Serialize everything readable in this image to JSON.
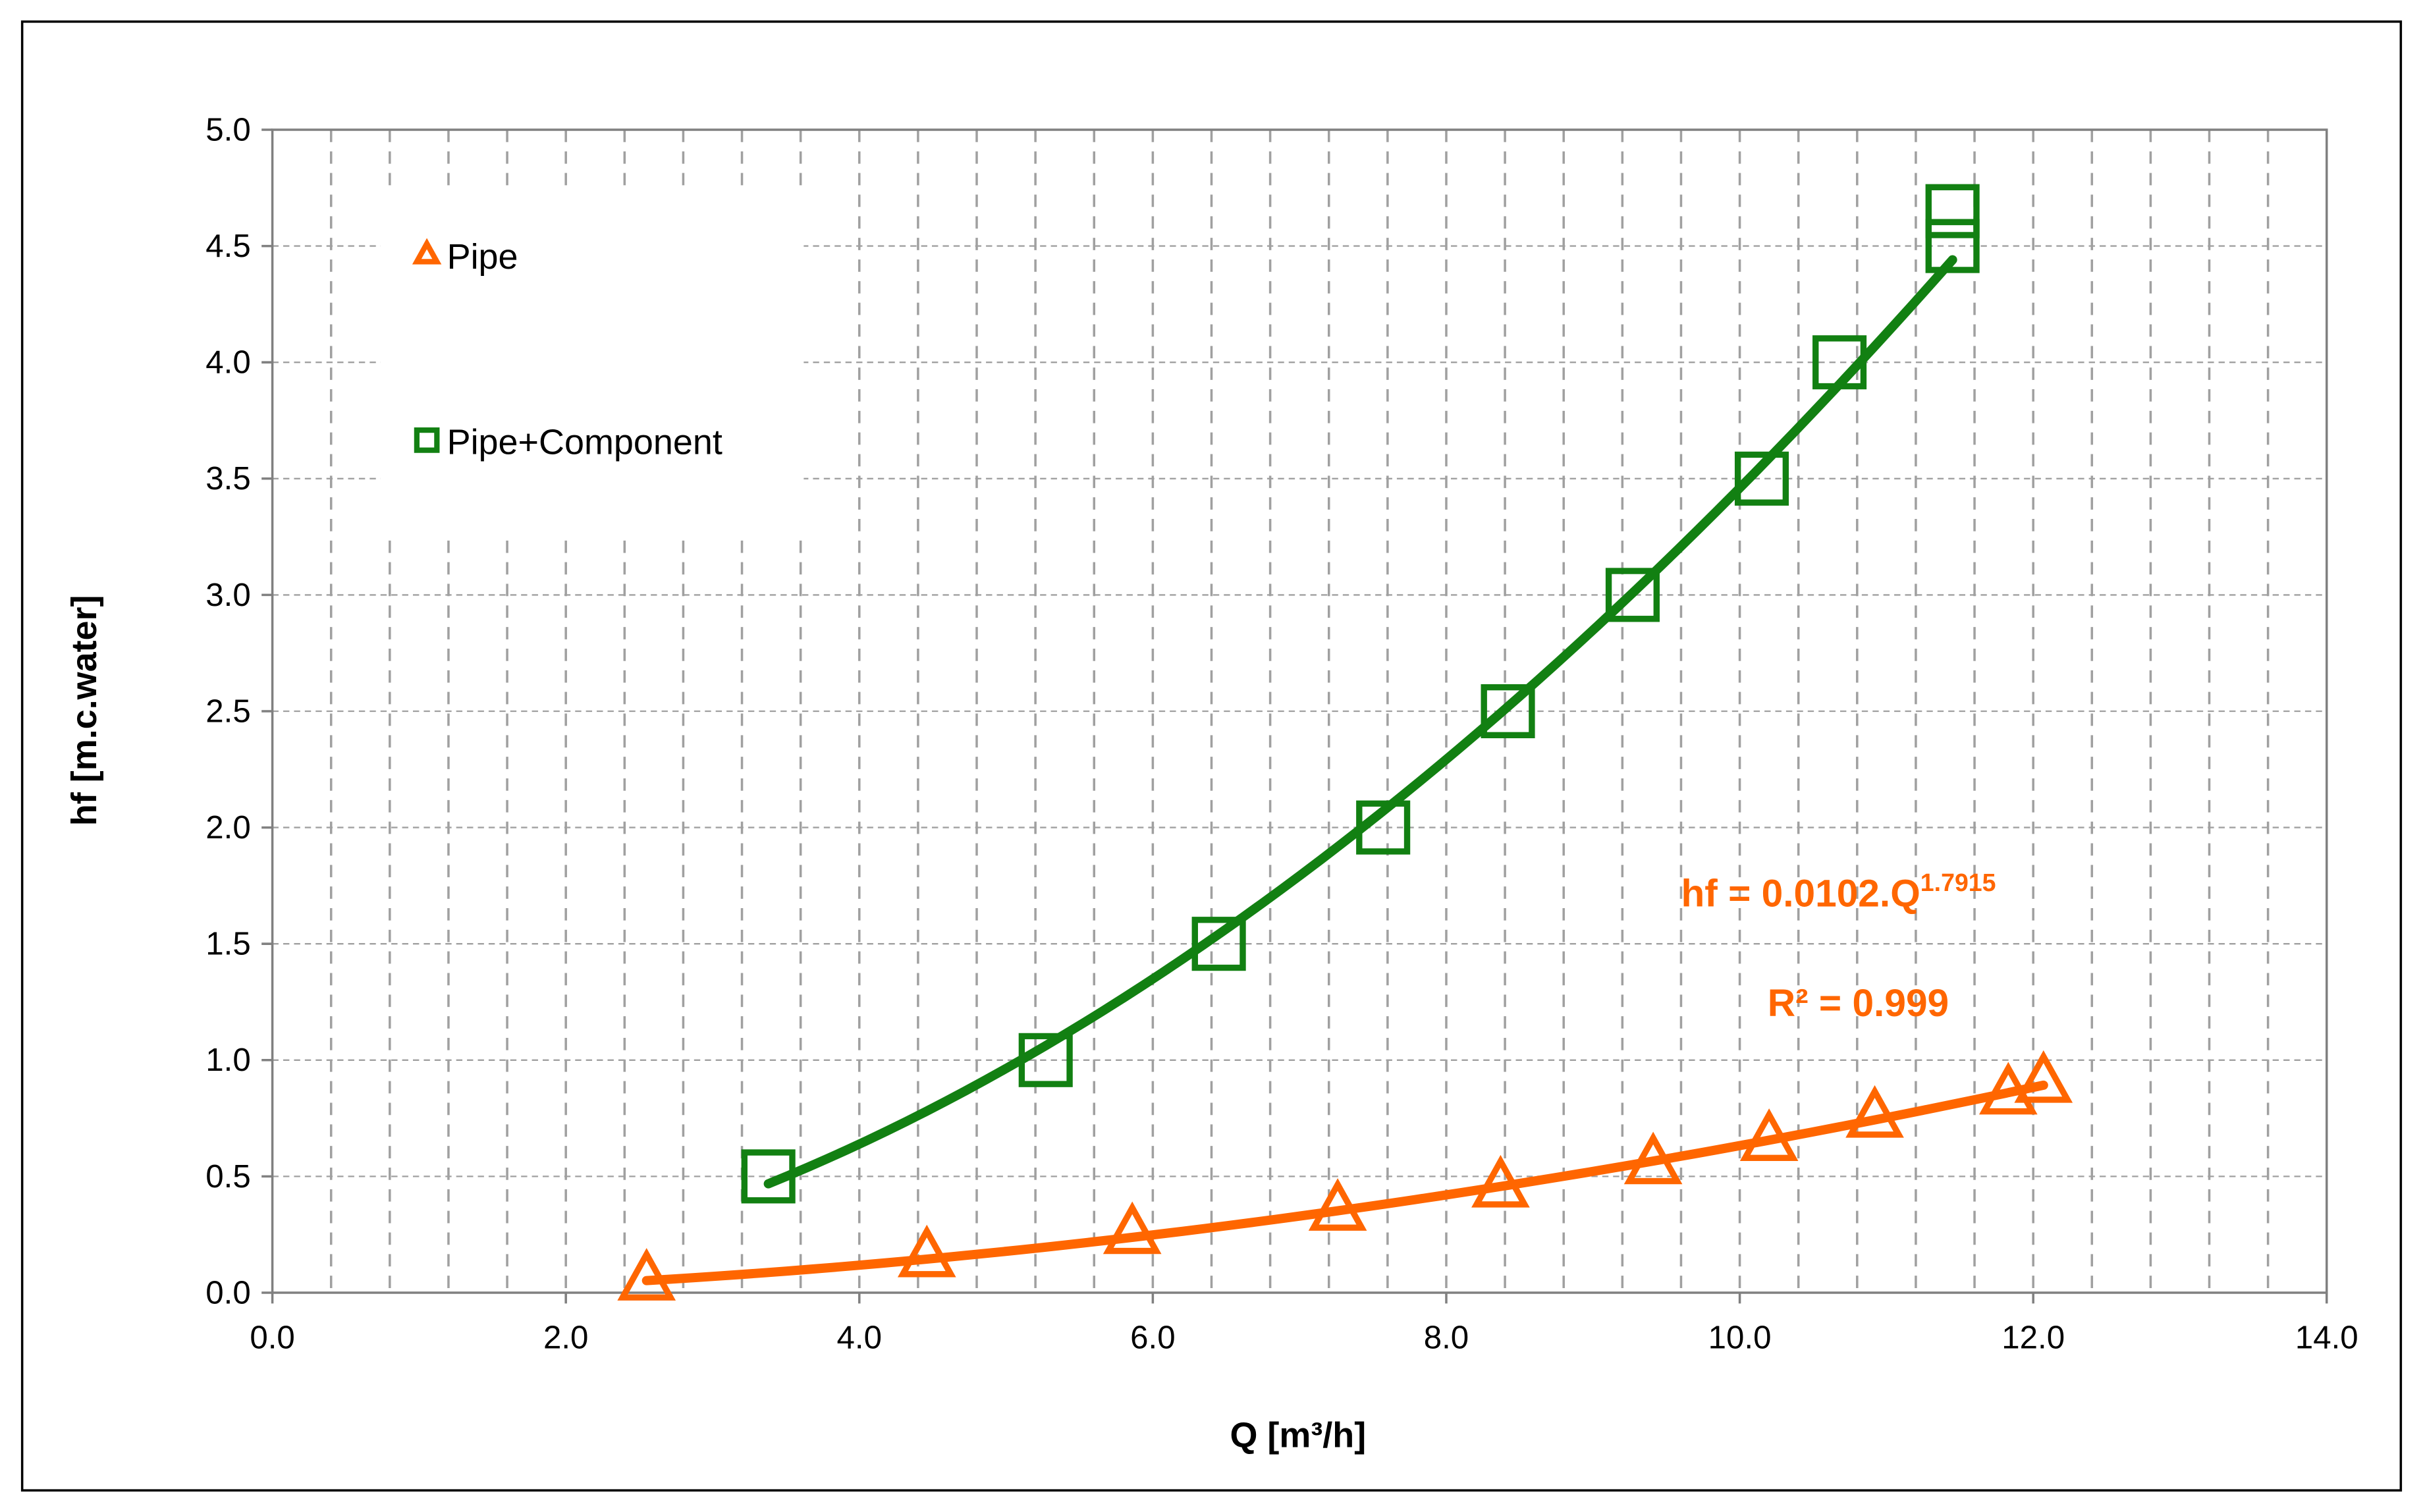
{
  "chart_data": {
    "type": "scatter",
    "xlabel": "Q [m³/h]",
    "ylabel": "hf [m.c.water]",
    "xlim": [
      0,
      14
    ],
    "ylim": [
      0,
      5
    ],
    "xticks": [
      {
        "value": 0,
        "label": "0.0"
      },
      {
        "value": 2,
        "label": "2.0"
      },
      {
        "value": 4,
        "label": "4.0"
      },
      {
        "value": 6,
        "label": "6.0"
      },
      {
        "value": 8,
        "label": "8.0"
      },
      {
        "value": 10,
        "label": "10.0"
      },
      {
        "value": 12,
        "label": "12.0"
      },
      {
        "value": 14,
        "label": "14.0"
      }
    ],
    "yticks": [
      {
        "value": 0,
        "label": "0.0"
      },
      {
        "value": 0.5,
        "label": "0.5"
      },
      {
        "value": 1,
        "label": "1.0"
      },
      {
        "value": 1.5,
        "label": "1.5"
      },
      {
        "value": 2,
        "label": "2.0"
      },
      {
        "value": 2.5,
        "label": "2.5"
      },
      {
        "value": 3,
        "label": "3.0"
      },
      {
        "value": 3.5,
        "label": "3.5"
      },
      {
        "value": 4,
        "label": "4.0"
      },
      {
        "value": 4.5,
        "label": "4.5"
      },
      {
        "value": 5,
        "label": "5.0"
      }
    ],
    "grid": true,
    "x_grid_step": 0.4,
    "trendline": "power",
    "series": [
      {
        "name": "Pipe",
        "color": "#ff6600",
        "marker": "triangle",
        "x": [
          2.55,
          4.46,
          5.86,
          7.26,
          8.37,
          9.41,
          10.2,
          10.92,
          11.83,
          12.07
        ],
        "values": [
          0.05,
          0.15,
          0.25,
          0.35,
          0.45,
          0.55,
          0.65,
          0.75,
          0.85,
          0.9
        ]
      },
      {
        "name": "Pipe+Component",
        "color": "#128012",
        "marker": "square",
        "x": [
          3.38,
          5.27,
          6.45,
          7.57,
          8.42,
          9.27,
          10.15,
          10.68,
          11.45,
          11.45
        ],
        "values": [
          0.5,
          1.0,
          1.5,
          2.0,
          2.5,
          3.0,
          3.5,
          4.0,
          4.5,
          4.65
        ]
      }
    ],
    "annotations": [
      {
        "text": "hf = 0.0102.Q",
        "sup": "1.7915"
      },
      {
        "text": "R² = 0.999"
      }
    ]
  }
}
